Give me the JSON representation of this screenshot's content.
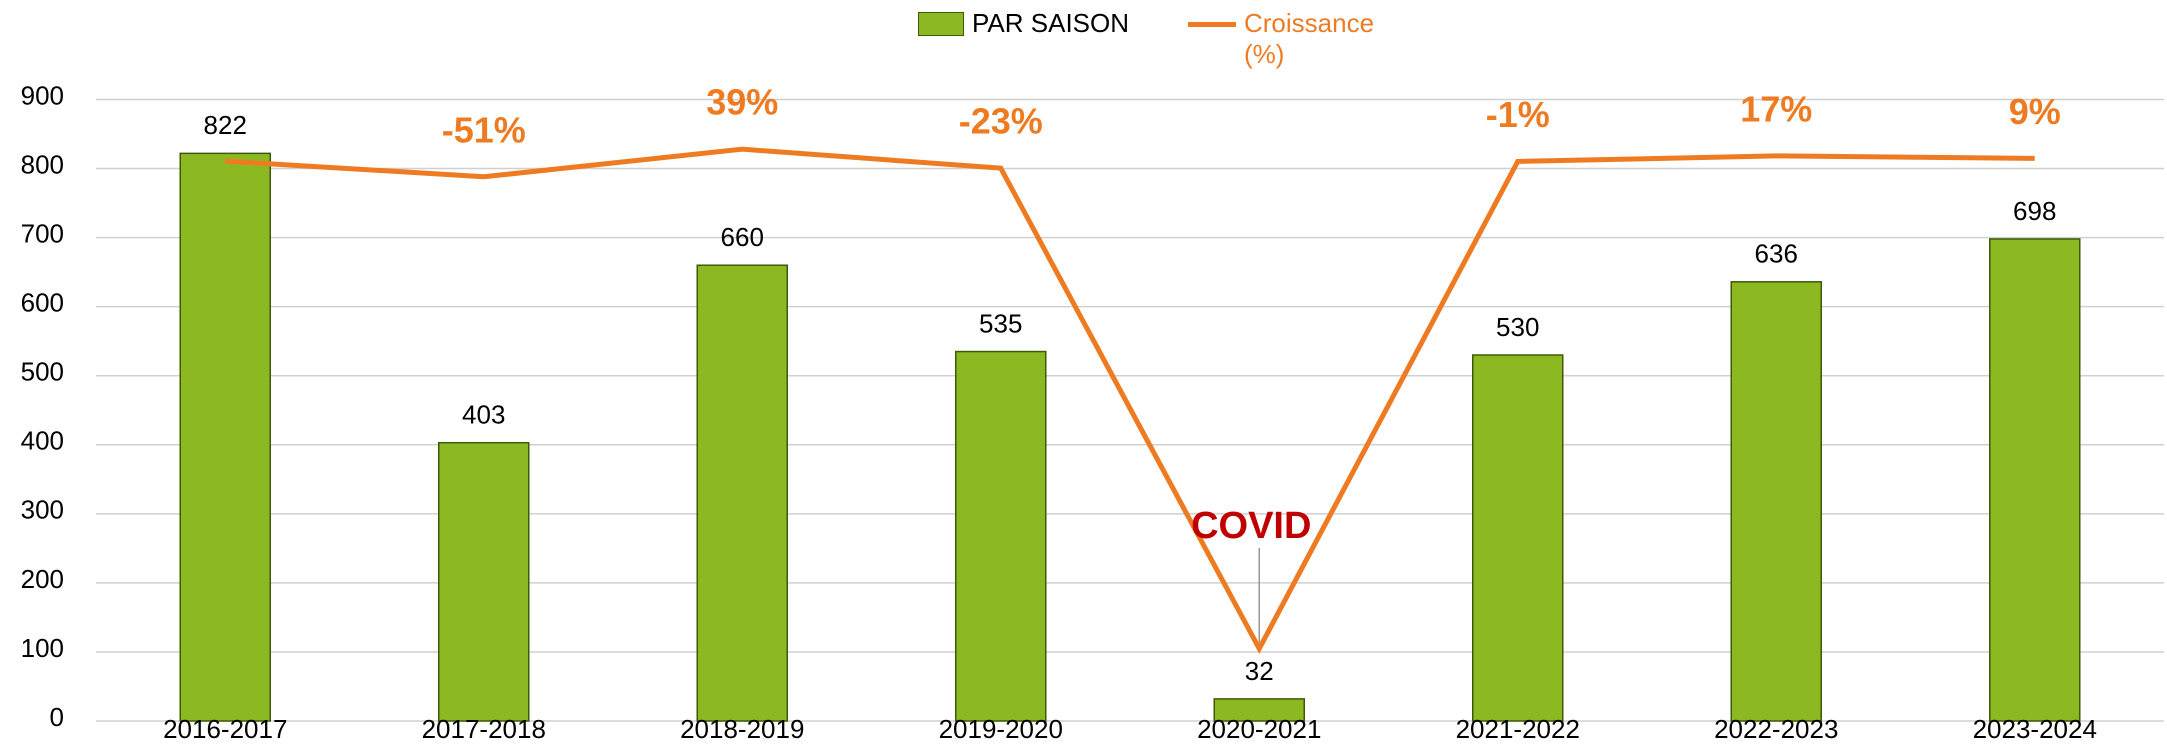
{
  "chart_data": {
    "type": "bar_line",
    "categories": [
      "2016-2017",
      "2017-2018",
      "2018-2019",
      "2019-2020",
      "2020-2021",
      "2021-2022",
      "2022-2023",
      "2023-2024"
    ],
    "series": [
      {
        "name": "PAR SAISON",
        "color": "#8cb922",
        "values": [
          822,
          403,
          660,
          535,
          32,
          530,
          636,
          698
        ]
      },
      {
        "name": "Croissance (%)",
        "color": "#ee7b22",
        "axis": "y2",
        "values": [
          0,
          -51,
          39,
          -23,
          -1590,
          -1,
          17,
          9
        ],
        "value_labels": [
          null,
          "-51%",
          "39%",
          "-23%",
          null,
          "-1%",
          "17%",
          "9%"
        ]
      }
    ],
    "annotation": "COVID",
    "ylim": [
      0,
      900
    ],
    "yticks": [
      0,
      100,
      200,
      300,
      400,
      500,
      600,
      700,
      800,
      900
    ],
    "y2lim": [
      -1826,
      201
    ],
    "grid": true
  }
}
